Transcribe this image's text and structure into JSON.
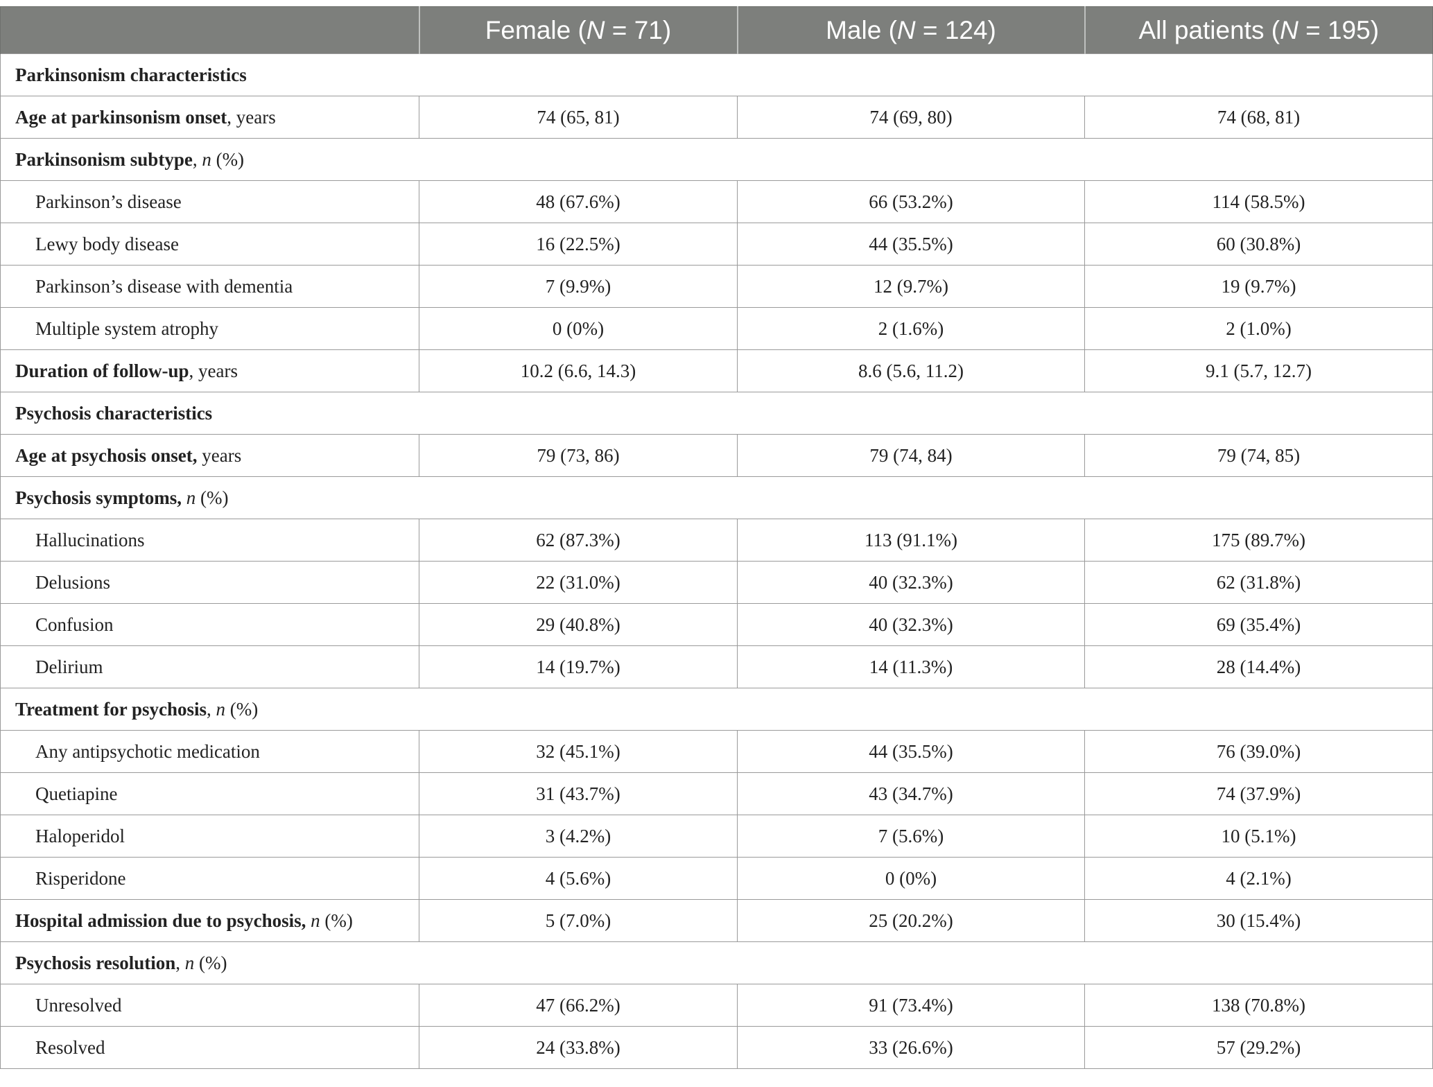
{
  "header": {
    "col0": "",
    "col1_pre": "Female (",
    "col1_n": "N",
    "col1_post": " = 71)",
    "col2_pre": "Male (",
    "col2_n": "N",
    "col2_post": " = 124)",
    "col3_pre": "All patients (",
    "col3_n": "N",
    "col3_post": " = 195)"
  },
  "rows": [
    {
      "bold": "Parkinsonism characteristics",
      "suffix": "",
      "unit": ""
    },
    {
      "bold": "Age at parkinsonism onset",
      "suffix": ", years",
      "unit": "",
      "female": "74 (65, 81)",
      "male": "74 (69, 80)",
      "all": "74 (68, 81)"
    },
    {
      "bold": "Parkinsonism subtype",
      "suffix": ", ",
      "unit_italic": "n",
      "unit_tail": " (%)"
    },
    {
      "label": "Parkinson’s disease",
      "female": "48 (67.6%)",
      "male": "66 (53.2%)",
      "all": "114 (58.5%)"
    },
    {
      "label": "Lewy body disease",
      "female": "16 (22.5%)",
      "male": "44 (35.5%)",
      "all": "60 (30.8%)"
    },
    {
      "label": "Parkinson’s disease with dementia",
      "female": "7 (9.9%)",
      "male": "12 (9.7%)",
      "all": "19 (9.7%)"
    },
    {
      "label": "Multiple system atrophy",
      "female": "0 (0%)",
      "male": "2 (1.6%)",
      "all": "2 (1.0%)"
    },
    {
      "bold": "Duration of follow-up",
      "suffix": ", years",
      "female": "10.2 (6.6, 14.3)",
      "male": "8.6 (5.6, 11.2)",
      "all": "9.1 (5.7, 12.7)"
    },
    {
      "bold": "Psychosis characteristics",
      "suffix": ""
    },
    {
      "bold": "Age at psychosis onset,",
      "suffix": " years",
      "female": "79 (73, 86)",
      "male": "79 (74, 84)",
      "all": "79 (74, 85)"
    },
    {
      "bold": "Psychosis symptoms,",
      "suffix": " ",
      "unit_italic": "n",
      "unit_tail": " (%)"
    },
    {
      "label": "Hallucinations",
      "female": "62 (87.3%)",
      "male": "113 (91.1%)",
      "all": "175 (89.7%)"
    },
    {
      "label": "Delusions",
      "female": "22 (31.0%)",
      "male": "40 (32.3%)",
      "all": "62 (31.8%)"
    },
    {
      "label": "Confusion",
      "female": "29 (40.8%)",
      "male": "40 (32.3%)",
      "all": "69 (35.4%)"
    },
    {
      "label": "Delirium",
      "female": "14 (19.7%)",
      "male": "14 (11.3%)",
      "all": "28 (14.4%)"
    },
    {
      "bold": "Treatment for psychosis",
      "suffix": ", ",
      "unit_italic": "n",
      "unit_tail": " (%)"
    },
    {
      "label": "Any antipsychotic medication",
      "female": "32 (45.1%)",
      "male": "44 (35.5%)",
      "all": "76 (39.0%)"
    },
    {
      "label": "Quetiapine",
      "female": "31 (43.7%)",
      "male": "43 (34.7%)",
      "all": "74 (37.9%)"
    },
    {
      "label": "Haloperidol",
      "female": "3 (4.2%)",
      "male": "7 (5.6%)",
      "all": "10 (5.1%)"
    },
    {
      "label": "Risperidone",
      "female": "4 (5.6%)",
      "male": "0 (0%)",
      "all": "4 (2.1%)"
    },
    {
      "bold": "Hospital admission due to psychosis,",
      "suffix": " ",
      "unit_italic": "n",
      "unit_tail": " (%)",
      "female": "5 (7.0%)",
      "male": "25 (20.2%)",
      "all": "30 (15.4%)"
    },
    {
      "bold": "Psychosis resolution",
      "suffix": ", ",
      "unit_italic": "n",
      "unit_tail": " (%)"
    },
    {
      "label": "Unresolved",
      "female": "47 (66.2%)",
      "male": "91 (73.4%)",
      "all": "138 (70.8%)"
    },
    {
      "label": "Resolved",
      "female": "24 (33.8%)",
      "male": "33 (26.6%)",
      "all": "57 (29.2%)"
    }
  ]
}
